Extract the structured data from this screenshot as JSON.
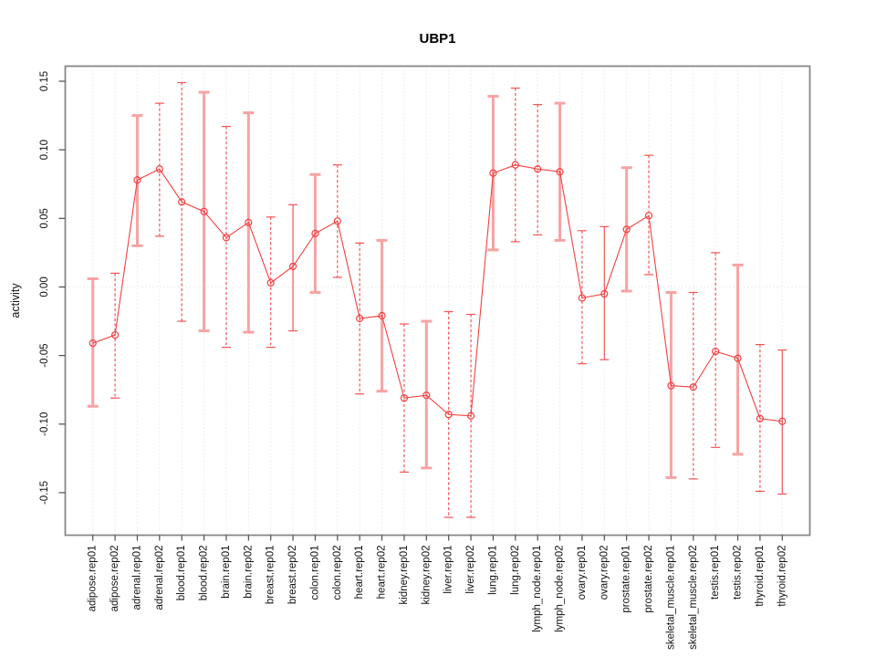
{
  "figure": {
    "title": "UBP1"
  },
  "chart_data": {
    "type": "line",
    "subtype": "points-with-error-bars",
    "title": "UBP1",
    "xlabel": "",
    "ylabel": "activity",
    "ylim": [
      -0.181,
      0.161
    ],
    "yticks": [
      0.15,
      0.1,
      0.05,
      0.0,
      -0.05,
      -0.1,
      -0.15
    ],
    "ytick_labels": [
      "0.15",
      "0.10",
      "0.05",
      "0.00",
      "-0.05",
      "-0.10",
      "-0.15"
    ],
    "grid": "vertical dotted gridline at every category; horizontal dotted line at y=0",
    "legend_position": "none",
    "categories": [
      "adipose.rep01",
      "adipose.rep02",
      "adrenal.rep01",
      "adrenal.rep02",
      "blood.rep01",
      "blood.rep02",
      "brain.rep01",
      "brain.rep02",
      "breast.rep01",
      "breast.rep02",
      "colon.rep01",
      "colon.rep02",
      "heart.rep01",
      "heart.rep02",
      "kidney.rep01",
      "kidney.rep02",
      "liver.rep01",
      "liver.rep02",
      "lung.rep01",
      "lung.rep02",
      "lymph_node.rep01",
      "lymph_node.rep02",
      "ovary.rep01",
      "ovary.rep02",
      "prostate.rep01",
      "prostate.rep02",
      "skeletal_muscle.rep01",
      "skeletal_muscle.rep02",
      "testis.rep01",
      "testis.rep02",
      "thyroid.rep01",
      "thyroid.rep02"
    ],
    "series": [
      {
        "name": "activity",
        "marker": "open-circle",
        "values": [
          -0.041,
          -0.035,
          0.078,
          0.086,
          0.062,
          0.055,
          0.036,
          0.047,
          0.003,
          0.015,
          0.039,
          0.048,
          -0.023,
          -0.021,
          -0.081,
          -0.079,
          -0.093,
          -0.094,
          0.083,
          0.089,
          0.086,
          0.084,
          -0.008,
          -0.005,
          0.042,
          0.052,
          -0.072,
          -0.073,
          -0.047,
          -0.052,
          -0.096,
          -0.098
        ],
        "error_low": [
          -0.087,
          -0.081,
          0.03,
          0.037,
          -0.025,
          -0.032,
          -0.044,
          -0.033,
          -0.044,
          -0.032,
          -0.004,
          0.007,
          -0.078,
          -0.076,
          -0.135,
          -0.132,
          -0.168,
          -0.168,
          0.027,
          0.033,
          0.038,
          0.034,
          -0.056,
          -0.053,
          -0.003,
          0.009,
          -0.139,
          -0.14,
          -0.117,
          -0.122,
          -0.149,
          -0.151
        ],
        "error_high": [
          0.006,
          0.01,
          0.125,
          0.134,
          0.149,
          0.142,
          0.117,
          0.127,
          0.051,
          0.06,
          0.082,
          0.089,
          0.032,
          0.034,
          -0.027,
          -0.025,
          -0.018,
          -0.02,
          0.139,
          0.145,
          0.133,
          0.134,
          0.041,
          0.044,
          0.087,
          0.096,
          -0.004,
          -0.004,
          0.025,
          0.016,
          -0.042,
          -0.046
        ],
        "error_bar_styles": [
          "pink_solid",
          "red_dashed",
          "pink_solid",
          "red_dashed",
          "red_dashed",
          "pink_solid",
          "red_dashed",
          "pink_solid",
          "red_dashed",
          "red_solid",
          "pink_solid",
          "red_dashed",
          "red_dashed",
          "pink_solid",
          "red_dashed",
          "pink_solid",
          "red_dashed",
          "red_dashed",
          "pink_solid",
          "red_dashed",
          "red_dashed",
          "pink_solid",
          "red_dashed",
          "red_solid",
          "pink_solid",
          "red_dashed",
          "pink_solid",
          "red_dashed",
          "red_dashed",
          "pink_solid",
          "red_dashed",
          "red_solid"
        ]
      }
    ],
    "colors": {
      "point_and_line": "#f34040",
      "error_bar_pink": "#f7a3a3",
      "error_bar_red": "#f35454",
      "gridline": "#dcdcdc",
      "plot_border": "#878787",
      "text": "#000000"
    }
  }
}
